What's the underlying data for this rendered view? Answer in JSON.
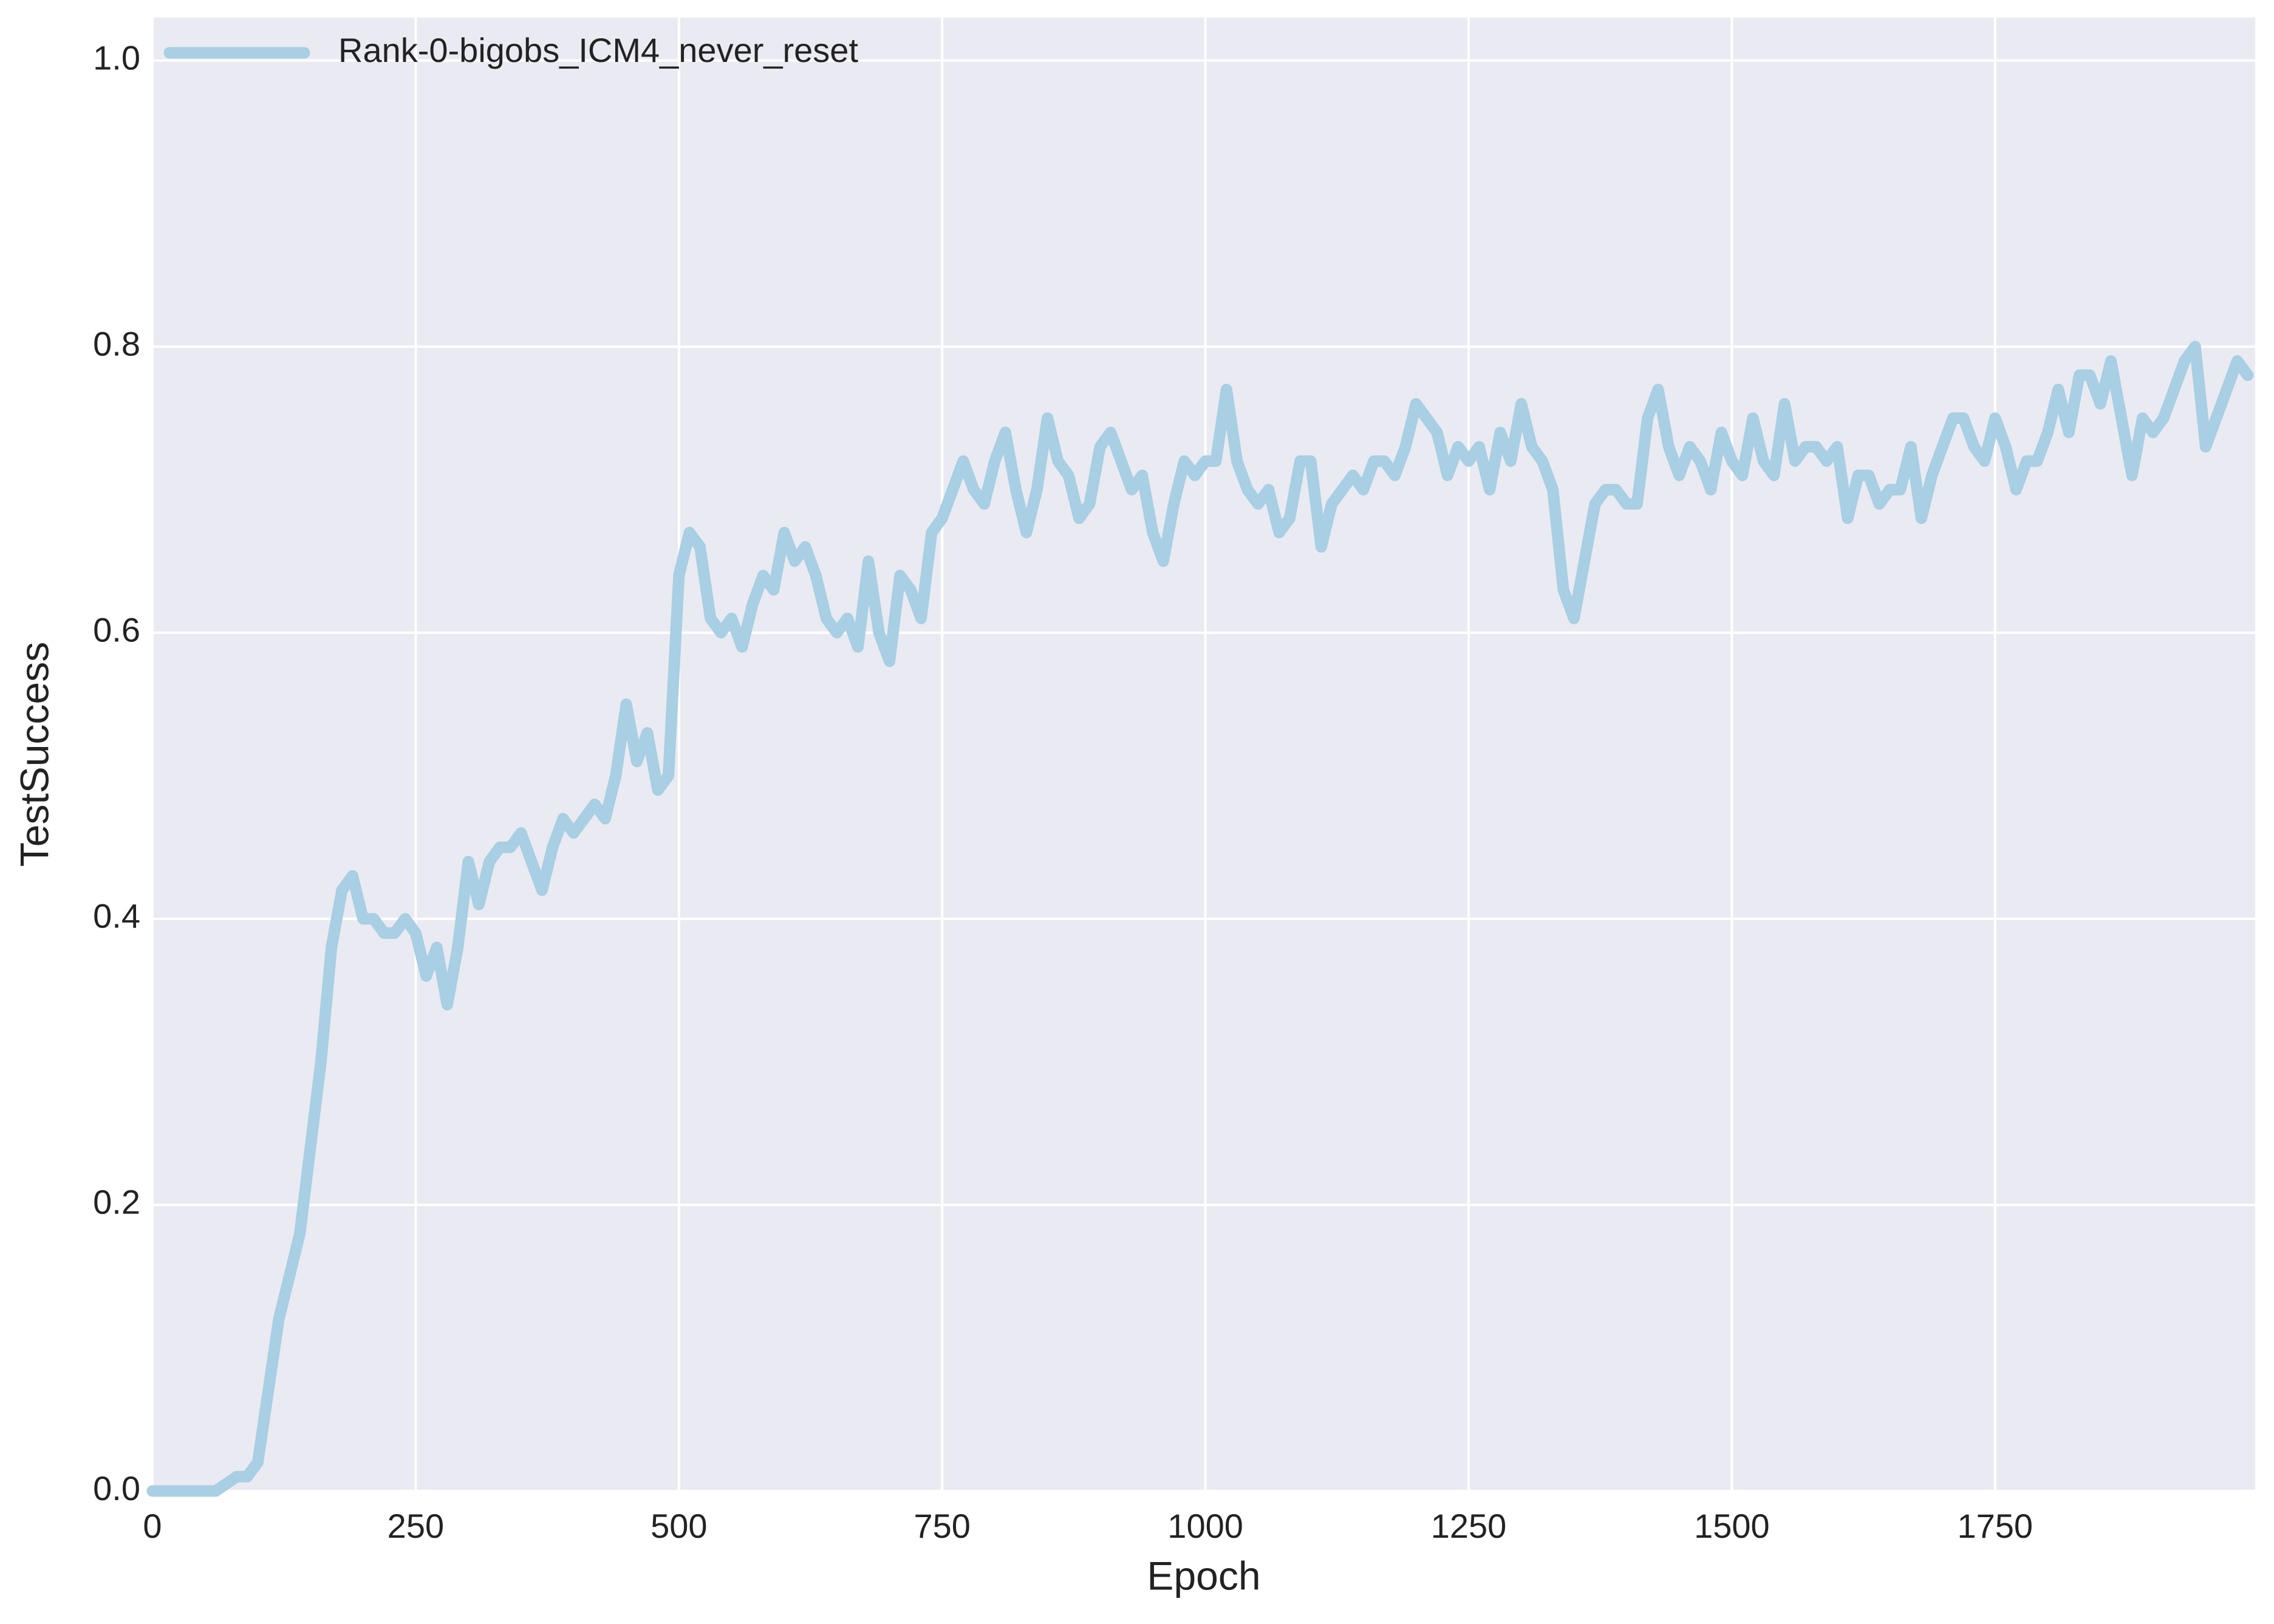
{
  "chart_data": {
    "type": "line",
    "xlabel": "Epoch",
    "ylabel": "TestSuccess",
    "x": [
      0,
      10,
      20,
      30,
      40,
      50,
      60,
      70,
      80,
      90,
      100,
      110,
      120,
      130,
      140,
      150,
      160,
      170,
      180,
      190,
      200,
      210,
      220,
      230,
      240,
      250,
      260,
      270,
      280,
      290,
      300,
      310,
      320,
      330,
      340,
      350,
      360,
      370,
      380,
      390,
      400,
      410,
      420,
      430,
      440,
      450,
      460,
      470,
      480,
      490,
      500,
      510,
      520,
      530,
      540,
      550,
      560,
      570,
      580,
      590,
      600,
      610,
      620,
      630,
      640,
      650,
      660,
      670,
      680,
      690,
      700,
      710,
      720,
      730,
      740,
      750,
      760,
      770,
      780,
      790,
      800,
      810,
      820,
      830,
      840,
      850,
      860,
      870,
      880,
      890,
      900,
      910,
      920,
      930,
      940,
      950,
      960,
      970,
      980,
      990,
      1000,
      1010,
      1020,
      1030,
      1040,
      1050,
      1060,
      1070,
      1080,
      1090,
      1100,
      1110,
      1120,
      1130,
      1140,
      1150,
      1160,
      1170,
      1180,
      1190,
      1200,
      1210,
      1220,
      1230,
      1240,
      1250,
      1260,
      1270,
      1280,
      1290,
      1300,
      1310,
      1320,
      1330,
      1340,
      1350,
      1360,
      1370,
      1380,
      1390,
      1400,
      1410,
      1420,
      1430,
      1440,
      1450,
      1460,
      1470,
      1480,
      1490,
      1500,
      1510,
      1520,
      1530,
      1540,
      1550,
      1560,
      1570,
      1580,
      1590,
      1600,
      1610,
      1620,
      1630,
      1640,
      1650,
      1660,
      1670,
      1680,
      1690,
      1700,
      1710,
      1720,
      1730,
      1740,
      1750,
      1760,
      1770,
      1780,
      1790,
      1800,
      1810,
      1820,
      1830,
      1840,
      1850,
      1860,
      1870,
      1880,
      1890,
      1900,
      1910,
      1920,
      1930,
      1940,
      1950,
      1960,
      1970,
      1980,
      1990
    ],
    "series": [
      {
        "name": "Rank-0-bigobs_ICM4_never_reset",
        "color": "#a8cfe3",
        "values": [
          0,
          0,
          0,
          0,
          0,
          0,
          0,
          0.005,
          0.01,
          0.01,
          0.02,
          0.07,
          0.12,
          0.15,
          0.18,
          0.24,
          0.3,
          0.38,
          0.42,
          0.43,
          0.4,
          0.4,
          0.39,
          0.39,
          0.4,
          0.39,
          0.36,
          0.38,
          0.34,
          0.38,
          0.44,
          0.41,
          0.44,
          0.45,
          0.45,
          0.46,
          0.44,
          0.42,
          0.45,
          0.47,
          0.46,
          0.47,
          0.48,
          0.47,
          0.5,
          0.55,
          0.51,
          0.53,
          0.49,
          0.5,
          0.64,
          0.67,
          0.66,
          0.61,
          0.6,
          0.61,
          0.59,
          0.62,
          0.64,
          0.63,
          0.67,
          0.65,
          0.66,
          0.64,
          0.61,
          0.6,
          0.61,
          0.59,
          0.65,
          0.6,
          0.58,
          0.64,
          0.63,
          0.61,
          0.67,
          0.68,
          0.7,
          0.72,
          0.7,
          0.69,
          0.72,
          0.74,
          0.7,
          0.67,
          0.7,
          0.75,
          0.72,
          0.71,
          0.68,
          0.69,
          0.73,
          0.74,
          0.72,
          0.7,
          0.71,
          0.67,
          0.65,
          0.69,
          0.72,
          0.71,
          0.72,
          0.72,
          0.77,
          0.72,
          0.7,
          0.69,
          0.7,
          0.67,
          0.68,
          0.72,
          0.72,
          0.66,
          0.69,
          0.7,
          0.71,
          0.7,
          0.72,
          0.72,
          0.71,
          0.73,
          0.76,
          0.75,
          0.74,
          0.71,
          0.73,
          0.72,
          0.73,
          0.7,
          0.74,
          0.72,
          0.76,
          0.73,
          0.72,
          0.7,
          0.63,
          0.61,
          0.65,
          0.69,
          0.7,
          0.7,
          0.69,
          0.69,
          0.75,
          0.77,
          0.73,
          0.71,
          0.73,
          0.72,
          0.7,
          0.74,
          0.72,
          0.71,
          0.75,
          0.72,
          0.71,
          0.76,
          0.72,
          0.73,
          0.73,
          0.72,
          0.73,
          0.68,
          0.71,
          0.71,
          0.69,
          0.7,
          0.7,
          0.73,
          0.68,
          0.71,
          0.73,
          0.75,
          0.75,
          0.73,
          0.72,
          0.75,
          0.73,
          0.7,
          0.72,
          0.72,
          0.74,
          0.77,
          0.74,
          0.78,
          0.78,
          0.76,
          0.79,
          0.75,
          0.71,
          0.75,
          0.74,
          0.75,
          0.77,
          0.79,
          0.8,
          0.73,
          0.75,
          0.77,
          0.79,
          0.78
        ]
      }
    ],
    "xlim": [
      0,
      1997
    ],
    "ylim": [
      0,
      1.03
    ],
    "xticks": [
      0,
      250,
      500,
      750,
      1000,
      1250,
      1500,
      1750
    ],
    "yticks": [
      {
        "value": 0,
        "label": "0.0"
      },
      0.2,
      0.4,
      0.6,
      0.8,
      {
        "value": 1,
        "label": "1.0"
      }
    ],
    "grid": true,
    "legend": "upper left",
    "background": "#eaeaf2"
  }
}
